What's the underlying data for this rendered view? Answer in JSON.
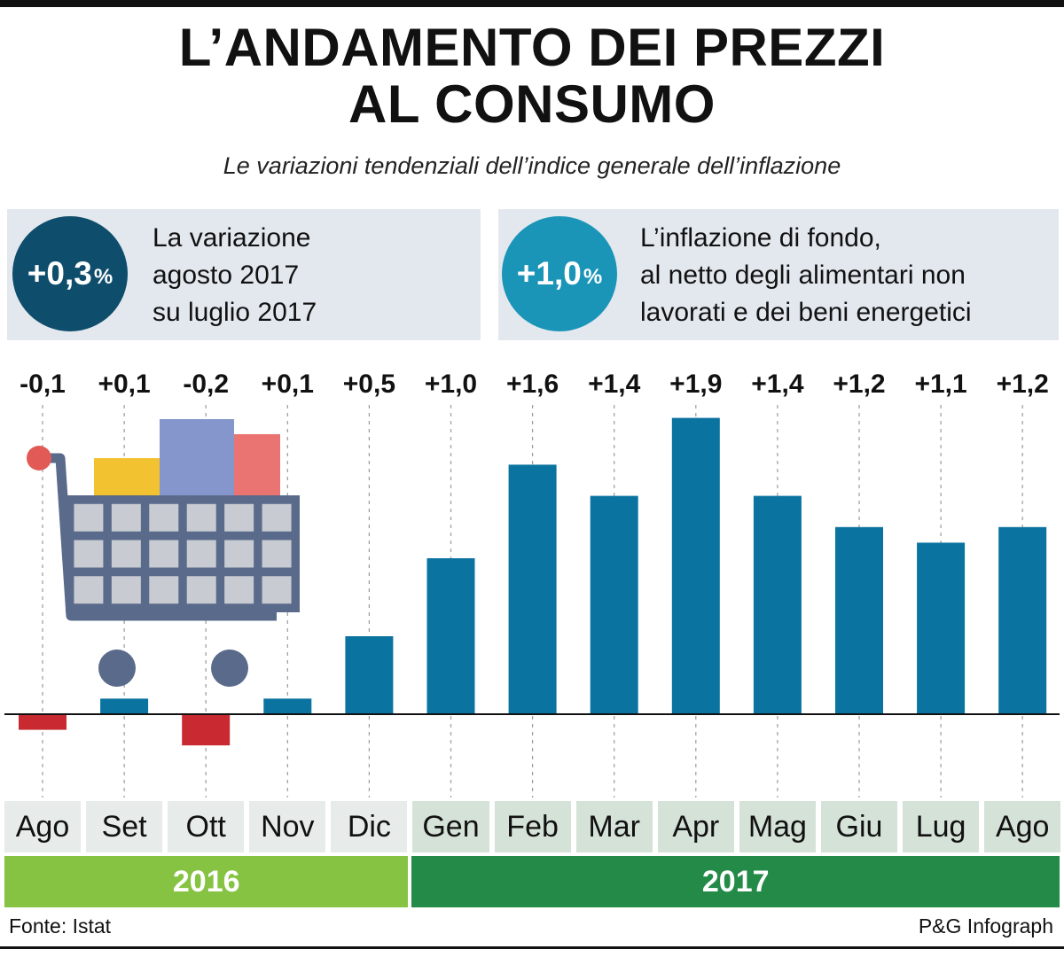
{
  "title_line1": "L’ANDAMENTO DEI PREZZI",
  "title_line2": "AL CONSUMO",
  "subtitle": "Le variazioni tendenziali dell’indice generale dell’inflazione",
  "box_left": {
    "value": "+0,3",
    "unit": "%",
    "lines": [
      "La variazione",
      "agosto 2017",
      "su luglio 2017"
    ],
    "color": "#0e4d6b"
  },
  "box_right": {
    "value": "+1,0",
    "unit": "%",
    "lines": [
      "L’inflazione di fondo,",
      "al netto degli alimentari non",
      "lavorati e dei beni energetici"
    ],
    "color": "#1a95b8"
  },
  "year_2016": "2016",
  "year_2017": "2017",
  "source": "Fonte: Istat",
  "credit": "P&G Infograph",
  "colors": {
    "positive": "#0a73a0",
    "negative": "#c92a31",
    "band_2016_month": "#e7ebea",
    "band_2017_month": "#d5e2d8",
    "band_2016_year": "#86c342",
    "band_2017_year": "#238b47",
    "cart_frame": "#5a6a8a",
    "cart_cells": "#c8ccd2"
  },
  "chart_data": {
    "type": "bar",
    "categories": [
      "Ago",
      "Set",
      "Ott",
      "Nov",
      "Dic",
      "Gen",
      "Feb",
      "Mar",
      "Apr",
      "Mag",
      "Giu",
      "Lug",
      "Ago"
    ],
    "values": [
      -0.1,
      0.1,
      -0.2,
      0.1,
      0.5,
      1.0,
      1.6,
      1.4,
      1.9,
      1.4,
      1.2,
      1.1,
      1.2
    ],
    "value_labels": [
      "-0,1",
      "+0,1",
      "-0,2",
      "+0,1",
      "+0,5",
      "+1,0",
      "+1,6",
      "+1,4",
      "+1,9",
      "+1,4",
      "+1,2",
      "+1,1",
      "+1,2"
    ],
    "years": [
      {
        "label": "2016",
        "months": [
          "Ago",
          "Set",
          "Ott",
          "Nov",
          "Dic"
        ]
      },
      {
        "label": "2017",
        "months": [
          "Gen",
          "Feb",
          "Mar",
          "Apr",
          "Mag",
          "Giu",
          "Lug",
          "Ago"
        ]
      }
    ],
    "ylim": [
      -0.3,
      2.0
    ],
    "grid": false,
    "title": "L’ANDAMENTO DEI PREZZI AL CONSUMO",
    "subtitle": "Le variazioni tendenziali dell’indice generale dell’inflazione"
  }
}
